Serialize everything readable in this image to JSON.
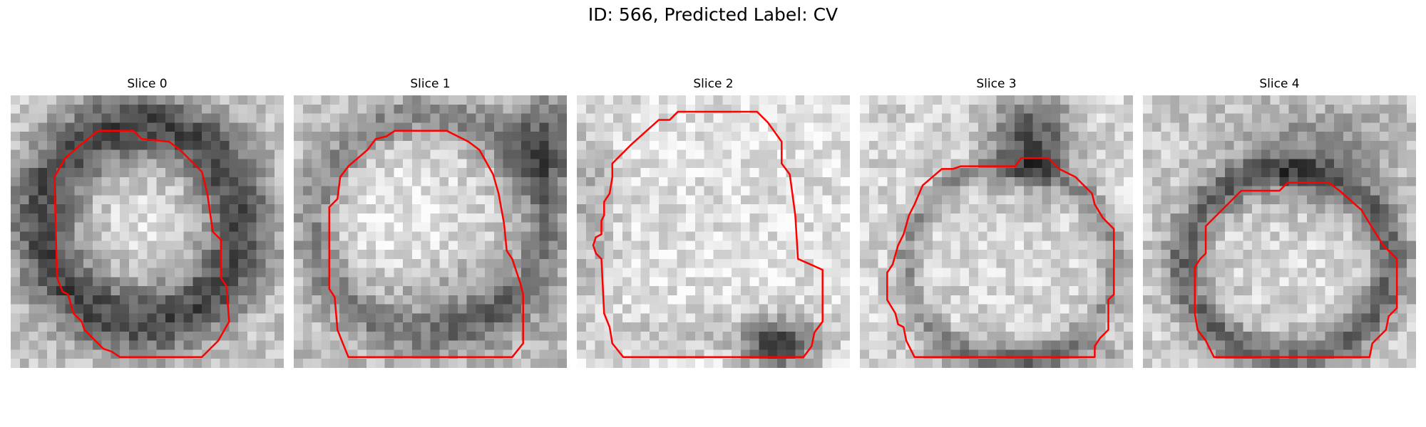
{
  "figure": {
    "title": "ID: 566, Predicted Label: CV"
  },
  "panels": [
    {
      "title": "Slice 0"
    },
    {
      "title": "Slice 1"
    },
    {
      "title": "Slice 2"
    },
    {
      "title": "Slice 3"
    },
    {
      "title": "Slice 4"
    }
  ],
  "colors": {
    "contour": "#ff0000",
    "background": "#ffffff"
  }
}
